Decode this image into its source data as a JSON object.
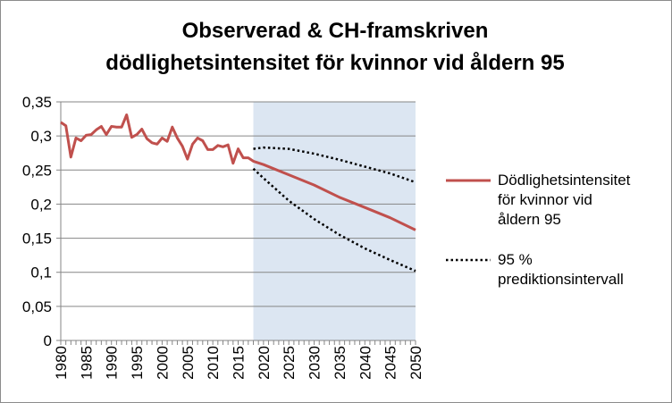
{
  "chart_data": {
    "type": "line",
    "title_line1": "Observerad & CH-framskriven",
    "title_line2": "dödlighetsintensitet för kvinnor vid åldern 95",
    "xlabel": "",
    "ylabel": "",
    "xlim": [
      1980,
      2050
    ],
    "ylim": [
      0,
      0.35
    ],
    "y_ticks": [
      "0",
      "0,05",
      "0,1",
      "0,15",
      "0,2",
      "0,25",
      "0,3",
      "0,35"
    ],
    "x_ticks": [
      "1980",
      "1985",
      "1990",
      "1995",
      "2000",
      "2005",
      "2010",
      "2015",
      "2020",
      "2025",
      "2030",
      "2035",
      "2040",
      "2045",
      "2050"
    ],
    "grid": true,
    "legend_position": "right",
    "projection_shade": {
      "from": 2018,
      "to": 2050,
      "color": "#dce6f2"
    },
    "series": [
      {
        "name": "Dödlighetsintensitet för kvinnor vid åldern 95",
        "legend_lines": [
          "Dödlighetsintensitet",
          "för kvinnor vid",
          "åldern 95"
        ],
        "color": "#c0504d",
        "style": "solid",
        "x": [
          1980,
          1981,
          1982,
          1983,
          1984,
          1985,
          1986,
          1987,
          1988,
          1989,
          1990,
          1991,
          1992,
          1993,
          1994,
          1995,
          1996,
          1997,
          1998,
          1999,
          2000,
          2001,
          2002,
          2003,
          2004,
          2005,
          2006,
          2007,
          2008,
          2009,
          2010,
          2011,
          2012,
          2013,
          2014,
          2015,
          2016,
          2017,
          2018,
          2020,
          2025,
          2030,
          2035,
          2040,
          2045,
          2050
        ],
        "y": [
          0.32,
          0.315,
          0.269,
          0.297,
          0.293,
          0.301,
          0.302,
          0.309,
          0.314,
          0.302,
          0.314,
          0.313,
          0.313,
          0.331,
          0.298,
          0.302,
          0.31,
          0.296,
          0.29,
          0.288,
          0.297,
          0.292,
          0.313,
          0.297,
          0.285,
          0.266,
          0.288,
          0.297,
          0.293,
          0.28,
          0.28,
          0.286,
          0.284,
          0.287,
          0.26,
          0.281,
          0.268,
          0.268,
          0.263,
          0.258,
          0.243,
          0.228,
          0.21,
          0.195,
          0.18,
          0.162
        ]
      },
      {
        "name": "95 % prediktionsintervall",
        "legend_lines": [
          "95 %",
          "prediktionsintervall"
        ],
        "color": "#000000",
        "style": "dotted",
        "bands": [
          {
            "x": [
              2018,
              2020,
              2025,
              2030,
              2035,
              2040,
              2045,
              2050
            ],
            "y": [
              0.281,
              0.283,
              0.281,
              0.274,
              0.265,
              0.255,
              0.245,
              0.232
            ]
          },
          {
            "x": [
              2018,
              2020,
              2025,
              2030,
              2035,
              2040,
              2045,
              2050
            ],
            "y": [
              0.252,
              0.238,
              0.205,
              0.178,
              0.155,
              0.135,
              0.118,
              0.102
            ]
          }
        ]
      }
    ]
  }
}
